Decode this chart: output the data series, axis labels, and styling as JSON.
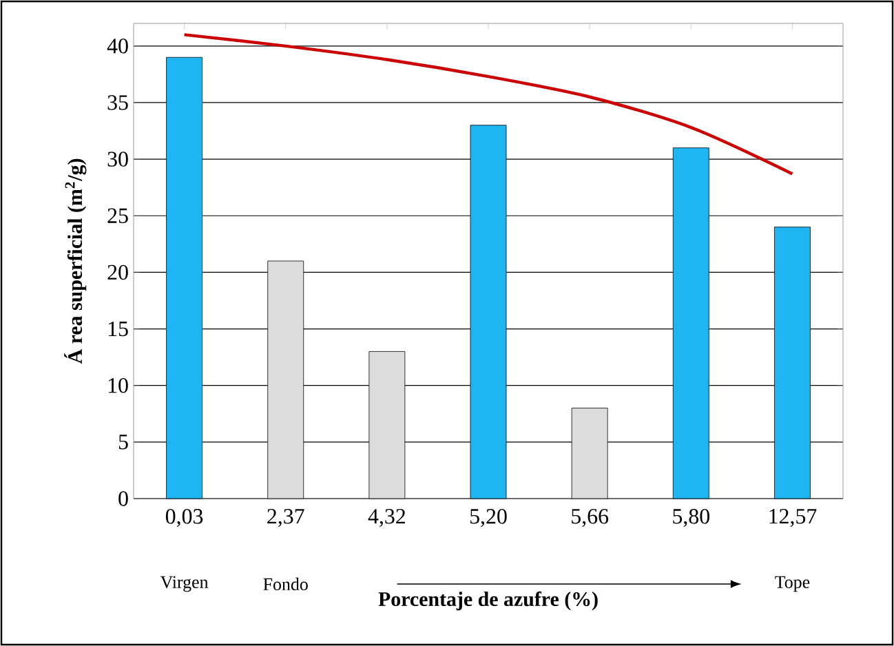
{
  "chart_data": {
    "type": "bar",
    "xlabel": "Porcentaje de azufre (%)",
    "ylabel": "Á rea superficial (m$^{2}$/g)",
    "categories": [
      "0,03",
      "2,37",
      "4,32",
      "5,20",
      "5,66",
      "5,80",
      "12,57"
    ],
    "series": [
      {
        "colors": [
          "#1fb4f2",
          "#dcdcdc",
          "#dcdcdc",
          "#1fb4f2",
          "#dcdcdc",
          "#1fb4f2",
          "#1fb4f2"
        ],
        "values": [
          39,
          21,
          13,
          33,
          8,
          31,
          24
        ]
      },
      {
        "type": "line",
        "color": "#cc0000",
        "values": [
          41,
          40,
          38.8,
          37.3,
          35.5,
          32.8,
          28.7
        ]
      }
    ],
    "ylim": [
      0,
      42
    ],
    "yticks": [
      0,
      5,
      10,
      15,
      20,
      25,
      30,
      35,
      40
    ],
    "grid": "y",
    "annotations": [
      "Virgen",
      "Fondo",
      "Tope"
    ]
  }
}
